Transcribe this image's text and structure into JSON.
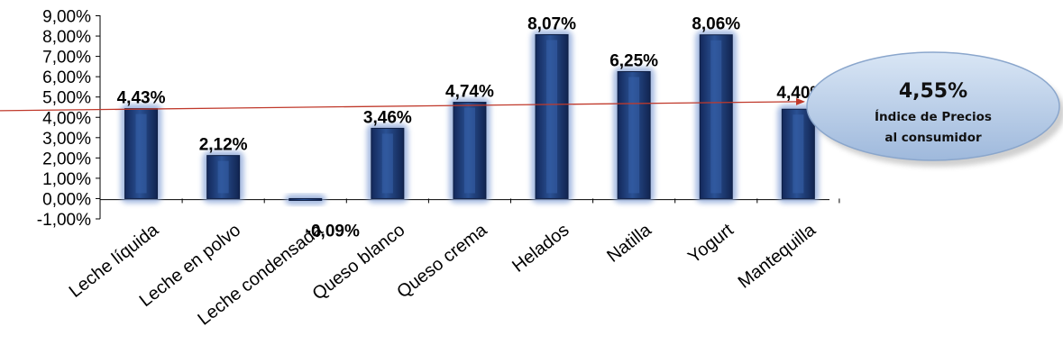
{
  "chart_data": {
    "type": "bar",
    "categories": [
      "Leche líquida",
      "Leche en polvo",
      "Leche condensada",
      "Queso blanco",
      "Queso crema",
      "Helados",
      "Natilla",
      "Yogurt",
      "Mantequilla"
    ],
    "values": [
      4.43,
      2.12,
      -0.09,
      3.46,
      4.74,
      8.07,
      6.25,
      8.06,
      4.4
    ],
    "data_labels": [
      "4,43%",
      "2,12%",
      "-0,09%",
      "3,46%",
      "4,74%",
      "8,07%",
      "6,25%",
      "8,06%",
      "4,40%"
    ],
    "y_ticks": [
      "-1,00%",
      "0,00%",
      "1,00%",
      "2,00%",
      "3,00%",
      "4,00%",
      "5,00%",
      "6,00%",
      "7,00%",
      "8,00%",
      "9,00%"
    ],
    "ylim": [
      -1,
      9
    ],
    "grid": false,
    "legend": "none",
    "bar_color": "#1f3b73",
    "reference_line": {
      "value": 4.55,
      "color": "#c0392b"
    }
  },
  "callout": {
    "value": "4,55%",
    "line1": "Índice de Precios",
    "line2": "al consumidor"
  }
}
